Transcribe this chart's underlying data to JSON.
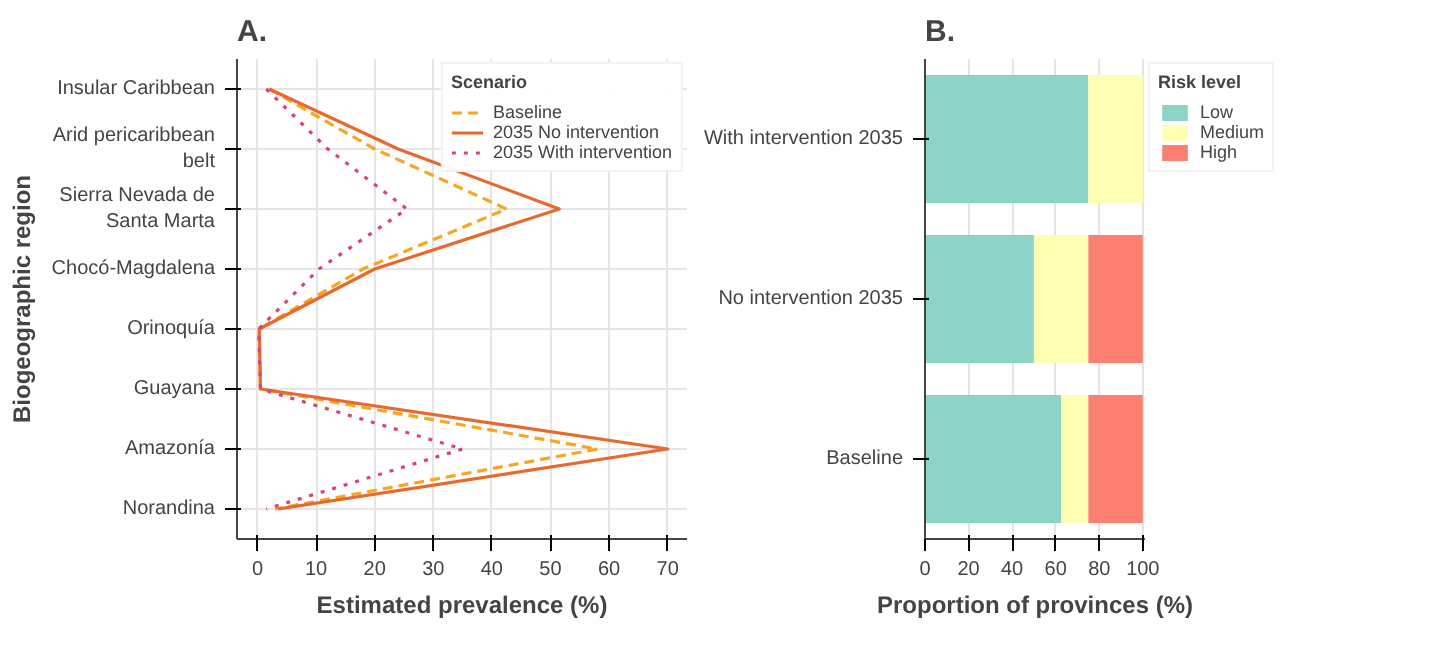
{
  "chart_data": [
    {
      "type": "line",
      "title": "A.",
      "orientation": "horizontal",
      "xlabel": "Estimated prevalence (%)",
      "ylabel": "Biogeographic region",
      "legend_title": "Scenario",
      "categories": [
        "Insular Caribbean",
        "Arid pericaribbean belt",
        "Sierra Nevada de Santa Marta",
        "Chocó-Magdalena",
        "Orinoquía",
        "Guayana",
        "Amazonía",
        "Norandina"
      ],
      "series": [
        {
          "name": "Baseline",
          "color": "#f5a623",
          "line_style": "dashed",
          "values": [
            2,
            20,
            42.5,
            18,
            0.3,
            0.5,
            58,
            3
          ]
        },
        {
          "name": "2035 No intervention",
          "color": "#e8692e",
          "line_style": "solid",
          "values": [
            2,
            24,
            51.5,
            20,
            0.3,
            0.5,
            70,
            3.5
          ]
        },
        {
          "name": "2035 With intervention",
          "color": "#d6457a",
          "line_style": "dotted",
          "values": [
            1.5,
            12,
            25.5,
            10.5,
            0.2,
            0.5,
            35,
            1.5
          ]
        }
      ],
      "xlim": [
        -3.5,
        73.3
      ],
      "xticks": [
        0,
        10,
        20,
        30,
        40,
        50,
        60,
        70
      ],
      "grid": true,
      "legend": "top right"
    },
    {
      "type": "bar",
      "title": "B.",
      "orientation": "horizontal",
      "stacked": true,
      "xlabel": "Proportion of provinces (%)",
      "legend_title": "Risk level",
      "categories": [
        "With intervention 2035",
        "No intervention 2035",
        "Baseline"
      ],
      "series": [
        {
          "name": "Low",
          "color": "#8dd3c7",
          "values": [
            75,
            50,
            62.5
          ]
        },
        {
          "name": "Medium",
          "color": "#ffffb3",
          "values": [
            25,
            25,
            12.5
          ]
        },
        {
          "name": "High",
          "color": "#fb8072",
          "values": [
            0,
            25,
            25
          ]
        }
      ],
      "xlim": [
        0,
        101
      ],
      "xticks": [
        0,
        20,
        40,
        60,
        80,
        100
      ],
      "grid": "x",
      "legend": "right"
    }
  ]
}
